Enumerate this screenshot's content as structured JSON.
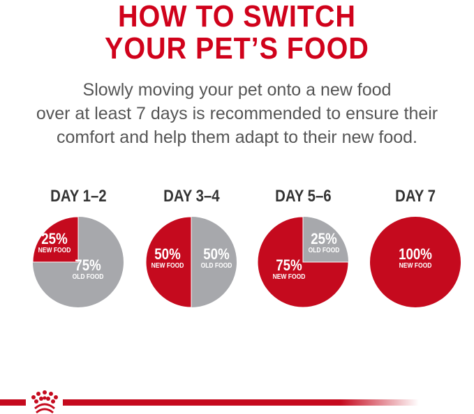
{
  "title": {
    "line1": "HOW TO SWITCH",
    "line2": "YOUR PET’S FOOD"
  },
  "intro": {
    "line1": "Slowly moving your pet onto a new food",
    "line2": "over at least 7 days is recommended to ensure their",
    "line3": "comfort and help them adapt to their new food."
  },
  "colors": {
    "new_food": "#c50a1e",
    "old_food": "#a7a8ac",
    "title": "#d0021b"
  },
  "chart_data": [
    {
      "type": "pie",
      "title": "DAY 1–2",
      "slices": [
        {
          "label": "NEW FOOD",
          "value": 25,
          "text": "25%"
        },
        {
          "label": "OLD FOOD",
          "value": 75,
          "text": "75%"
        }
      ]
    },
    {
      "type": "pie",
      "title": "DAY 3–4",
      "slices": [
        {
          "label": "NEW FOOD",
          "value": 50,
          "text": "50%"
        },
        {
          "label": "OLD FOOD",
          "value": 50,
          "text": "50%"
        }
      ]
    },
    {
      "type": "pie",
      "title": "DAY 5–6",
      "slices": [
        {
          "label": "NEW FOOD",
          "value": 75,
          "text": "75%"
        },
        {
          "label": "OLD FOOD",
          "value": 25,
          "text": "25%"
        }
      ]
    },
    {
      "type": "pie",
      "title": "DAY 7",
      "slices": [
        {
          "label": "NEW FOOD",
          "value": 100,
          "text": "100%"
        }
      ]
    }
  ],
  "logo": {
    "name": "crown-logo"
  }
}
